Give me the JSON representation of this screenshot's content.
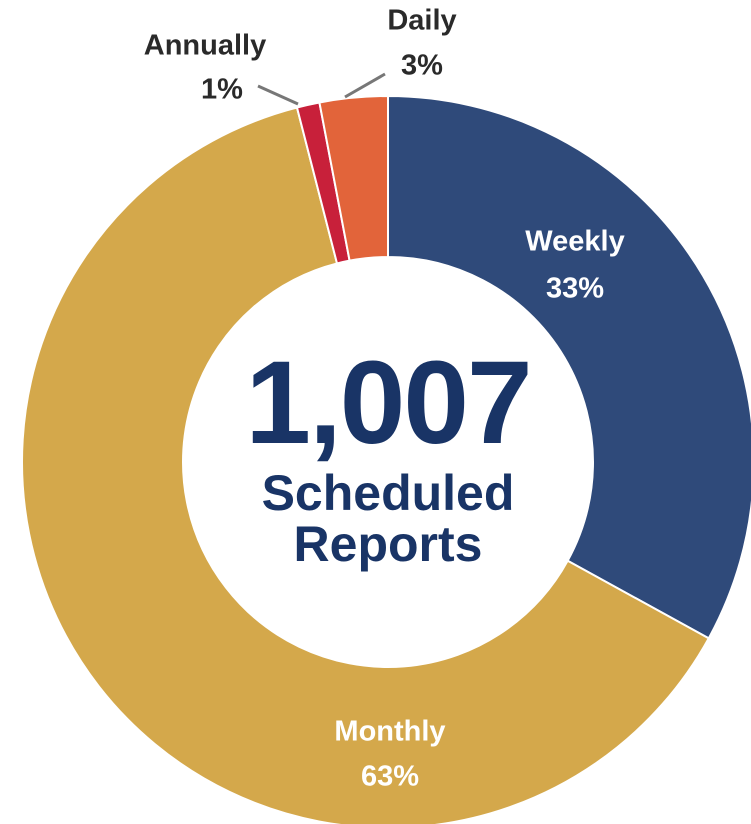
{
  "chart_data": {
    "type": "donut",
    "categories": [
      "Weekly",
      "Monthly",
      "Annually",
      "Daily"
    ],
    "values": [
      33,
      63,
      1,
      3
    ],
    "value_labels": [
      "33%",
      "63%",
      "1%",
      "3%"
    ],
    "colors": [
      "#2f4a7a",
      "#d4a84b",
      "#c8203a",
      "#e2643a"
    ],
    "center_label": "1,007",
    "center_text": [
      "Scheduled",
      "Reports"
    ]
  }
}
